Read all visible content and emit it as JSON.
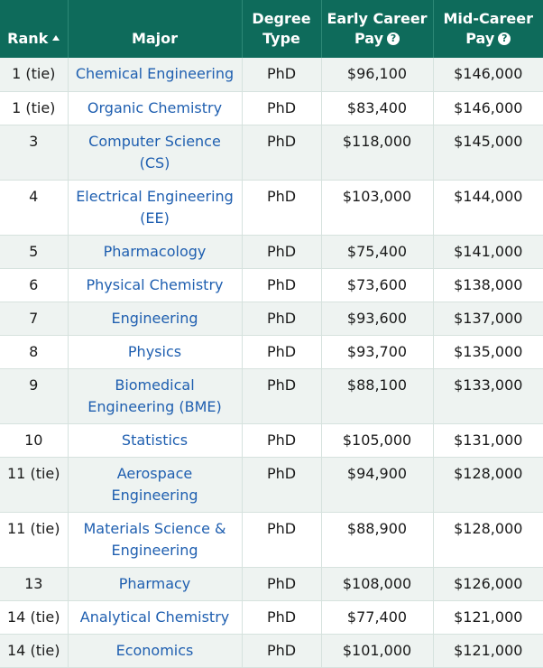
{
  "colors": {
    "header_bg": "#0e6b5b",
    "header_text": "#ffffff",
    "link": "#1f5fb0",
    "row_alt": "#eef3f1"
  },
  "header": {
    "rank": "Rank",
    "major": "Major",
    "degree_line1": "Degree",
    "degree_line2": "Type",
    "early_line1": "Early Career",
    "early_line2": "Pay",
    "mid_line1": "Mid-Career",
    "mid_line2": "Pay",
    "help_glyph": "?"
  },
  "rows": [
    {
      "rank": "1 (tie)",
      "major": "Chemical Engineering",
      "degree": "PhD",
      "early": "$96,100",
      "mid": "$146,000"
    },
    {
      "rank": "1 (tie)",
      "major": "Organic Chemistry",
      "degree": "PhD",
      "early": "$83,400",
      "mid": "$146,000"
    },
    {
      "rank": "3",
      "major": "Computer Science (CS)",
      "degree": "PhD",
      "early": "$118,000",
      "mid": "$145,000"
    },
    {
      "rank": "4",
      "major": "Electrical Engineering (EE)",
      "degree": "PhD",
      "early": "$103,000",
      "mid": "$144,000"
    },
    {
      "rank": "5",
      "major": "Pharmacology",
      "degree": "PhD",
      "early": "$75,400",
      "mid": "$141,000"
    },
    {
      "rank": "6",
      "major": "Physical Chemistry",
      "degree": "PhD",
      "early": "$73,600",
      "mid": "$138,000"
    },
    {
      "rank": "7",
      "major": "Engineering",
      "degree": "PhD",
      "early": "$93,600",
      "mid": "$137,000"
    },
    {
      "rank": "8",
      "major": "Physics",
      "degree": "PhD",
      "early": "$93,700",
      "mid": "$135,000"
    },
    {
      "rank": "9",
      "major": "Biomedical Engineering (BME)",
      "degree": "PhD",
      "early": "$88,100",
      "mid": "$133,000"
    },
    {
      "rank": "10",
      "major": "Statistics",
      "degree": "PhD",
      "early": "$105,000",
      "mid": "$131,000"
    },
    {
      "rank": "11 (tie)",
      "major": "Aerospace Engineering",
      "degree": "PhD",
      "early": "$94,900",
      "mid": "$128,000"
    },
    {
      "rank": "11 (tie)",
      "major": "Materials Science & Engineering",
      "degree": "PhD",
      "early": "$88,900",
      "mid": "$128,000"
    },
    {
      "rank": "13",
      "major": "Pharmacy",
      "degree": "PhD",
      "early": "$108,000",
      "mid": "$126,000"
    },
    {
      "rank": "14 (tie)",
      "major": "Analytical Chemistry",
      "degree": "PhD",
      "early": "$77,400",
      "mid": "$121,000"
    },
    {
      "rank": "14 (tie)",
      "major": "Economics",
      "degree": "PhD",
      "early": "$101,000",
      "mid": "$121,000"
    }
  ]
}
